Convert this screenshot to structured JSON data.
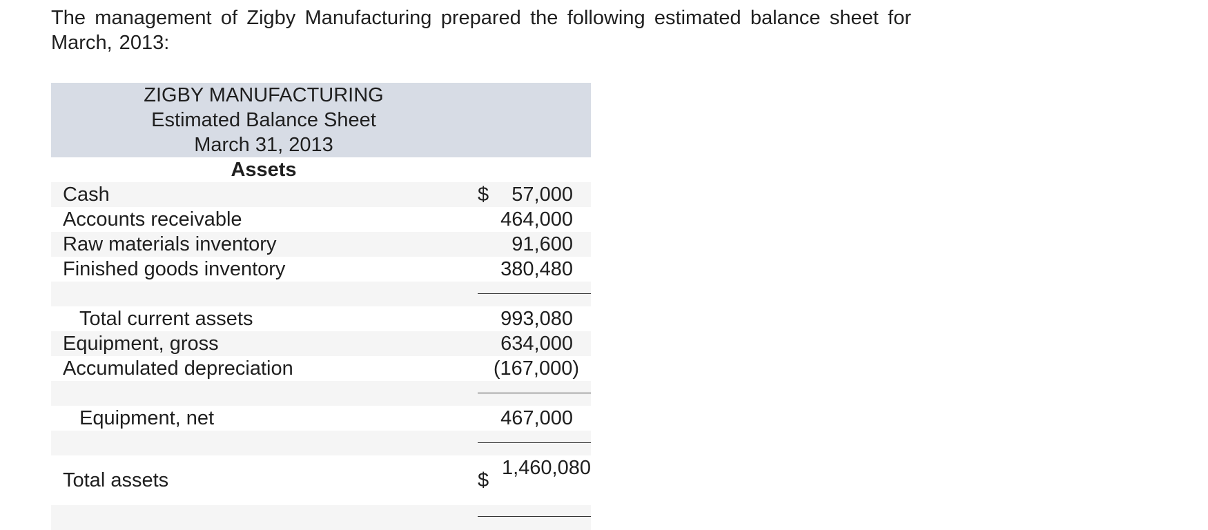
{
  "intro_text": "The management of Zigby Manufacturing prepared the following estimated balance sheet for March, 2013:",
  "sheet": {
    "company": "ZIGBY MANUFACTURING",
    "title": "Estimated Balance Sheet",
    "date": "March 31, 2013",
    "section": "Assets",
    "currency_symbol": "$",
    "rows": {
      "cash": {
        "label": "Cash",
        "value": "57,000"
      },
      "accounts_receivable": {
        "label": "Accounts receivable",
        "value": "464,000"
      },
      "raw_materials": {
        "label": "Raw materials inventory",
        "value": "91,600"
      },
      "finished_goods": {
        "label": "Finished goods inventory",
        "value": "380,480"
      },
      "total_current_assets": {
        "label": "Total current assets",
        "value": "993,080"
      },
      "equipment_gross": {
        "label": "Equipment, gross",
        "value": "634,000"
      },
      "accumulated_depreciation": {
        "label": "Accumulated depreciation",
        "value": "(167,000)"
      },
      "equipment_net": {
        "label": "Equipment, net",
        "value": "467,000"
      },
      "total_assets": {
        "label": "Total assets",
        "value": "1,460,080"
      }
    }
  },
  "colors": {
    "header_bg": "#d7dce5",
    "row_shade": "#f5f5f5",
    "text": "#1f1f1f"
  }
}
